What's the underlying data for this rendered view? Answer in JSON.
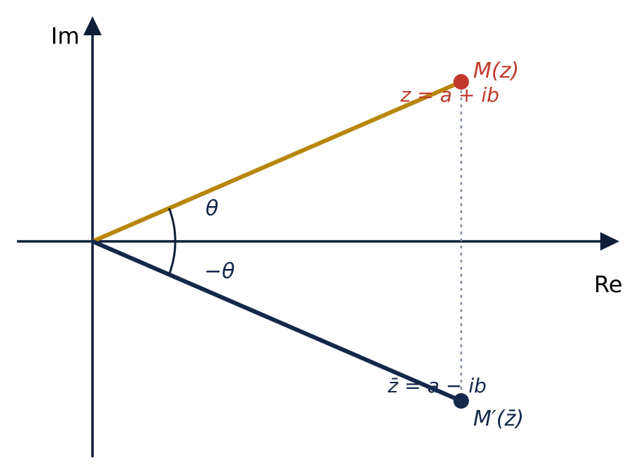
{
  "axes": {
    "x_label": "Re",
    "y_label": "Im"
  },
  "angles": {
    "positive": "θ",
    "negative": "−θ"
  },
  "point_m": {
    "label": "M(z)",
    "formula": "z = a + ib"
  },
  "point_m_prime": {
    "label": "M′(z̄)",
    "formula": "z̄ = a − ib"
  },
  "colors": {
    "axis": "#0f1f38",
    "z_segment": "#b8860b",
    "z_point": "#c0392b",
    "conjugate": "#14284b",
    "projection": "#7f8aa5"
  }
}
